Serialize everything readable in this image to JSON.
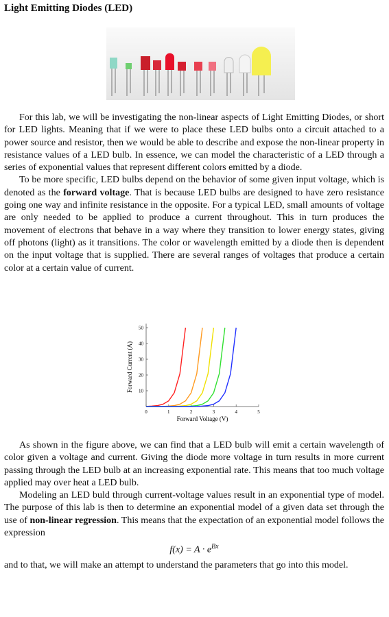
{
  "header": {
    "title": "Light Emitting Diodes (LED)"
  },
  "paragraphs": [
    {
      "text": "For this lab, we will be investigating the non-linear aspects of Light Emitting Diodes, or short for LED lights. Meaning that if we were to place these LED bulbs onto a circuit attached to a power source and resistor, then we would be able to describe and expose the non-linear property in resistance values of a LED bulb. In essence, we can model the characteristic of a LED through a series of exponential values that represent different colors emitted by a diode."
    },
    {
      "before": "To be more specific, LED bulbs depend on the behavior of some given input voltage, which is denoted as the",
      "bold": "forward voltage",
      "after": ". That is because LED bulbs are designed to have zero resistance going one way and infinite resistance in the opposite. For a typical LED, small amounts of voltage are only needed to be applied to produce a current throughout. This in turn produces the movement of electrons that behave in a way where they transition to lower energy states, giving off photons (light) as it transitions. The color or wavelength emitted by a diode then is dependent on the input voltage that is supplied. There are several ranges of voltages that produce a certain color at a certain value of current."
    },
    {
      "text": "As shown in the figure above, we can find that a LED bulb will emit a certain wavelength of color given a voltage and current. Giving the diode more voltage in turn results in more current passing through the LED bulb at an increasing exponential rate. This means that too much voltage applied may over heat a LED bulb."
    },
    {
      "before": "Modeling an LED buld through current-voltage values result in an exponential type of model. The purpose of this lab is then to determine an exponential model of a given data set through the use of",
      "bold": "non-linear regression",
      "after": ". This means that the expectation of an exponential model follows the expression"
    },
    {
      "text": "and to that, we will make an attempt to understand the parameters that go into this model."
    }
  ],
  "formula": {
    "base": "f(x) = A · e",
    "exponent": "Bx"
  },
  "chart_data": {
    "type": "line",
    "x_label": "Forward Voltage (V)",
    "y_label": "Forward Current (A)",
    "x": [
      0,
      0.25,
      0.5,
      0.75,
      1,
      1.25,
      1.5,
      1.75,
      2,
      2.25,
      2.5,
      2.75,
      3,
      3.25,
      3.5,
      3.75,
      4
    ],
    "series": [
      {
        "name": "red",
        "color": "#ff2020",
        "values": [
          0.1,
          0.3,
          0.6,
          1.5,
          3.6,
          8.7,
          20.8,
          50,
          null,
          null,
          null,
          null,
          null,
          null,
          null,
          null,
          null
        ]
      },
      {
        "name": "orange",
        "color": "#ff9a20",
        "values": [
          0,
          0,
          0,
          0.1,
          0.3,
          0.6,
          1.5,
          3.6,
          8.7,
          20.8,
          50,
          null,
          null,
          null,
          null,
          null,
          null
        ]
      },
      {
        "name": "yellow",
        "color": "#f0e000",
        "values": [
          0,
          0,
          0,
          0,
          0,
          0.1,
          0.3,
          0.6,
          1.5,
          3.6,
          8.7,
          20.8,
          50,
          null,
          null,
          null,
          null
        ]
      },
      {
        "name": "green",
        "color": "#30e030",
        "values": [
          0,
          0,
          0,
          0,
          0,
          0,
          0,
          0.1,
          0.3,
          0.6,
          1.5,
          3.6,
          8.7,
          20.8,
          50,
          null,
          null
        ]
      },
      {
        "name": "blue",
        "color": "#2030ff",
        "values": [
          0,
          0,
          0,
          0,
          0,
          0,
          0,
          0,
          0,
          0.1,
          0.3,
          0.6,
          1.5,
          3.6,
          8.7,
          20.8,
          50
        ]
      }
    ],
    "xlim": [
      0,
      5
    ],
    "xticks": [
      0,
      1,
      2,
      3,
      4,
      5
    ],
    "ylim": [
      0,
      50
    ],
    "yticks": [
      10,
      20,
      30,
      40,
      50
    ]
  }
}
